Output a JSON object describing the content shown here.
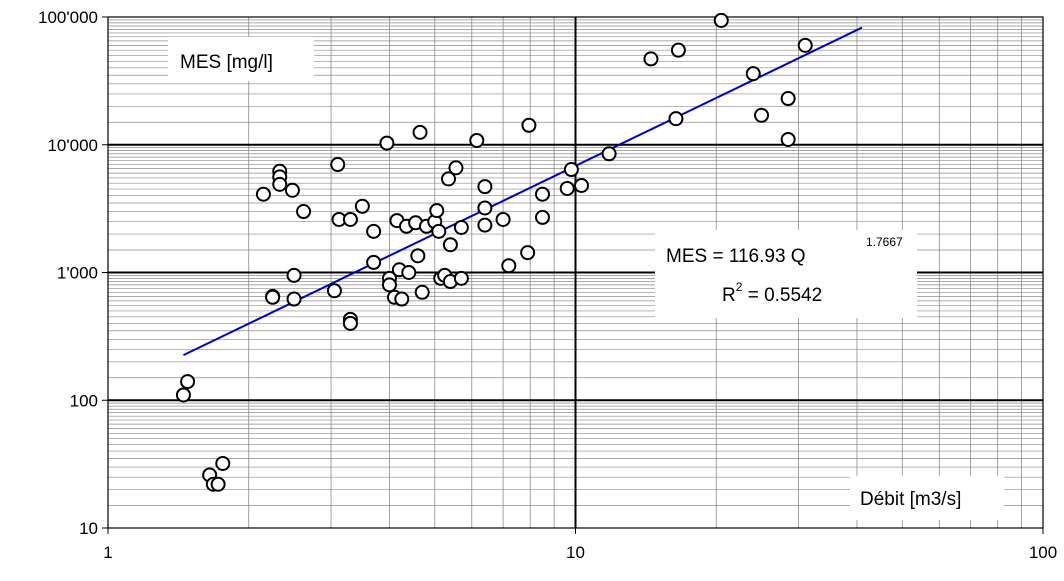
{
  "chart_data": {
    "type": "scatter",
    "x_scale": "log",
    "y_scale": "log",
    "xlim": [
      1,
      100
    ],
    "ylim": [
      10,
      100000
    ],
    "grid": true,
    "x_ticks": [
      1,
      10,
      100
    ],
    "x_tick_labels": [
      "1",
      "10",
      "100"
    ],
    "y_ticks": [
      10,
      100,
      1000,
      10000,
      100000
    ],
    "y_tick_labels": [
      "10",
      "100",
      "1'000",
      "10'000",
      "100'000"
    ],
    "ylabel": "MES [mg/l]",
    "xlabel": "Débit [m3/s]",
    "trendline": {
      "type": "power",
      "coefficient": 116.93,
      "exponent": 1.7667,
      "x_range": [
        1.45,
        41
      ],
      "color": "#0000cc",
      "equation_label": "MES = 116.93 Q",
      "exponent_label": "1.7667",
      "r2_label": "R",
      "r2_sup": "2",
      "r2_value": " = 0.5542"
    },
    "points": [
      [
        1.45,
        110
      ],
      [
        1.48,
        140
      ],
      [
        1.65,
        26
      ],
      [
        1.68,
        22
      ],
      [
        1.72,
        22
      ],
      [
        1.76,
        32
      ],
      [
        2.15,
        4100
      ],
      [
        2.25,
        650
      ],
      [
        2.25,
        640
      ],
      [
        2.33,
        6200
      ],
      [
        2.33,
        5600
      ],
      [
        2.33,
        4900
      ],
      [
        2.48,
        4400
      ],
      [
        2.5,
        950
      ],
      [
        2.5,
        620
      ],
      [
        2.62,
        3000
      ],
      [
        3.05,
        720
      ],
      [
        3.1,
        7000
      ],
      [
        3.12,
        2600
      ],
      [
        3.3,
        2600
      ],
      [
        3.3,
        430
      ],
      [
        3.3,
        400
      ],
      [
        3.5,
        3300
      ],
      [
        3.7,
        1200
      ],
      [
        3.7,
        2100
      ],
      [
        3.95,
        10300
      ],
      [
        4.0,
        900
      ],
      [
        4.0,
        800
      ],
      [
        4.1,
        640
      ],
      [
        4.15,
        2550
      ],
      [
        4.2,
        1050
      ],
      [
        4.25,
        620
      ],
      [
        4.35,
        2300
      ],
      [
        4.4,
        1000
      ],
      [
        4.55,
        2450
      ],
      [
        4.6,
        1350
      ],
      [
        4.65,
        12500
      ],
      [
        4.7,
        700
      ],
      [
        4.8,
        2300
      ],
      [
        5.0,
        2500
      ],
      [
        5.05,
        3050
      ],
      [
        5.1,
        2100
      ],
      [
        5.15,
        900
      ],
      [
        5.25,
        950
      ],
      [
        5.35,
        5400
      ],
      [
        5.4,
        1650
      ],
      [
        5.4,
        850
      ],
      [
        5.55,
        6600
      ],
      [
        5.7,
        2250
      ],
      [
        5.7,
        900
      ],
      [
        6.15,
        10800
      ],
      [
        6.4,
        4700
      ],
      [
        6.4,
        3200
      ],
      [
        6.4,
        2350
      ],
      [
        7.0,
        2600
      ],
      [
        7.2,
        1130
      ],
      [
        7.9,
        1430
      ],
      [
        7.95,
        14200
      ],
      [
        8.5,
        4100
      ],
      [
        8.5,
        2700
      ],
      [
        9.6,
        4550
      ],
      [
        9.8,
        6400
      ],
      [
        10.3,
        4800
      ],
      [
        11.8,
        8500
      ],
      [
        14.5,
        47000
      ],
      [
        16.4,
        16000
      ],
      [
        16.6,
        55000
      ],
      [
        20.5,
        94000
      ],
      [
        24.0,
        36000
      ],
      [
        25.0,
        17000
      ],
      [
        28.5,
        23000
      ],
      [
        28.5,
        11000
      ],
      [
        31.0,
        60000
      ]
    ]
  }
}
